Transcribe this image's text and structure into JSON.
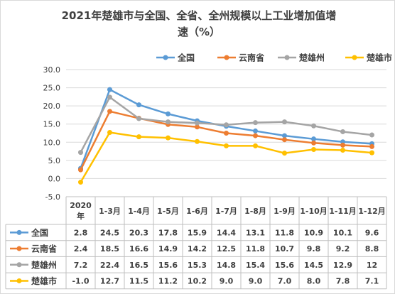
{
  "chart_data": {
    "type": "line",
    "title_line1": "2021年楚雄市与全国、全省、全州规模以上工业增加值增",
    "title_line2": "速（%）",
    "categories": [
      "2020年",
      "1-3月",
      "1-4月",
      "1-5月",
      "1-6月",
      "1-7月",
      "1-8月",
      "1-9月",
      "1-10月",
      "1-11月",
      "1-12月"
    ],
    "yticks": [
      "30.0",
      "25.0",
      "20.0",
      "15.0",
      "10.0",
      "5.0",
      "0.0",
      "-5.0"
    ],
    "ylim": [
      -5,
      30
    ],
    "grid": true,
    "legend_position": "top-right",
    "series": [
      {
        "name": "全国",
        "color": "#5b9bd5",
        "values": [
          2.8,
          24.5,
          20.3,
          17.8,
          15.9,
          14.4,
          13.1,
          11.8,
          10.9,
          10.1,
          9.6
        ],
        "labels": [
          "2.8",
          "24.5",
          "20.3",
          "17.8",
          "15.9",
          "14.4",
          "13.1",
          "11.8",
          "10.9",
          "10.1",
          "9.6"
        ]
      },
      {
        "name": "云南省",
        "color": "#ed7d31",
        "values": [
          2.4,
          18.5,
          16.6,
          14.9,
          14.2,
          12.5,
          11.8,
          10.7,
          9.8,
          9.2,
          8.8
        ],
        "labels": [
          "2.4",
          "18.5",
          "16.6",
          "14.9",
          "14.2",
          "12.5",
          "11.8",
          "10.7",
          "9.8",
          "9.2",
          "8.8"
        ]
      },
      {
        "name": "楚雄州",
        "color": "#a5a5a5",
        "values": [
          7.2,
          22.4,
          16.5,
          15.6,
          15.3,
          14.8,
          15.4,
          15.6,
          14.5,
          12.9,
          12
        ],
        "labels": [
          "7.2",
          "22.4",
          "16.5",
          "15.6",
          "15.3",
          "14.8",
          "15.4",
          "15.6",
          "14.5",
          "12.9",
          "12"
        ]
      },
      {
        "name": "楚雄市",
        "color": "#ffc000",
        "values": [
          -1.0,
          12.7,
          11.5,
          11.2,
          10.2,
          9.0,
          9.0,
          7.0,
          8.0,
          7.8,
          7.1
        ],
        "labels": [
          "-1.0",
          "12.7",
          "11.5",
          "11.2",
          "10.2",
          "9.0",
          "9.0",
          "7.0",
          "8.0",
          "7.8",
          "7.1"
        ]
      }
    ]
  }
}
